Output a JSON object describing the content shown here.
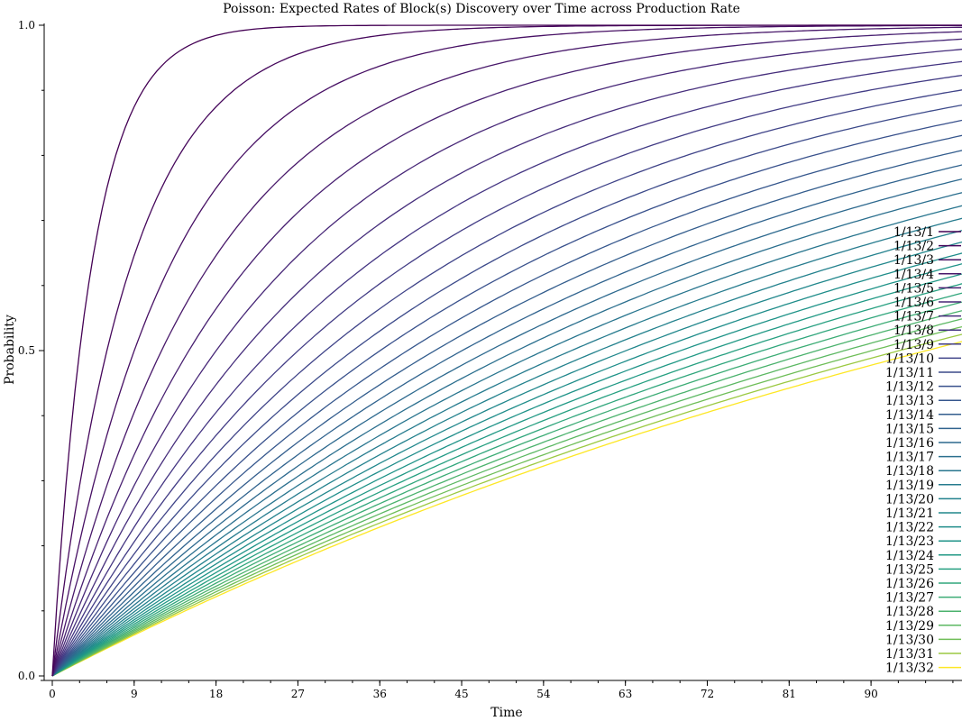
{
  "chart_data": {
    "type": "line",
    "title": "Poisson: Expected Rates of Block(s) Discovery over Time across Production Rate",
    "xlabel": "Time",
    "ylabel": "Probability",
    "xlim": [
      0,
      100
    ],
    "ylim": [
      0.0,
      1.0
    ],
    "xticks": [
      "0",
      "9",
      "18",
      "27",
      "36",
      "45",
      "54",
      "63",
      "72",
      "81",
      "90"
    ],
    "yticks": [
      "0.0",
      "0.5",
      "1.0"
    ],
    "legend_position": "right",
    "grid": false,
    "series": [
      {
        "name": "1/13/1",
        "color": "#440154"
      },
      {
        "name": "1/13/2",
        "color": "#46085c"
      },
      {
        "name": "1/13/3",
        "color": "#471064"
      },
      {
        "name": "1/13/4",
        "color": "#48186a"
      },
      {
        "name": "1/13/5",
        "color": "#482071"
      },
      {
        "name": "1/13/6",
        "color": "#472777"
      },
      {
        "name": "1/13/7",
        "color": "#462e7c"
      },
      {
        "name": "1/13/8",
        "color": "#443582"
      },
      {
        "name": "1/13/9",
        "color": "#423c85"
      },
      {
        "name": "1/13/10",
        "color": "#3f4388"
      },
      {
        "name": "1/13/11",
        "color": "#3c4a8a"
      },
      {
        "name": "1/13/12",
        "color": "#39518c"
      },
      {
        "name": "1/13/13",
        "color": "#36578d"
      },
      {
        "name": "1/13/14",
        "color": "#335d8d"
      },
      {
        "name": "1/13/15",
        "color": "#30638e"
      },
      {
        "name": "1/13/16",
        "color": "#2d698e"
      },
      {
        "name": "1/13/17",
        "color": "#2b6f8e"
      },
      {
        "name": "1/13/18",
        "color": "#28758e"
      },
      {
        "name": "1/13/19",
        "color": "#267b8e"
      },
      {
        "name": "1/13/20",
        "color": "#23818d"
      },
      {
        "name": "1/13/21",
        "color": "#21878c"
      },
      {
        "name": "1/13/22",
        "color": "#1f8d8a"
      },
      {
        "name": "1/13/23",
        "color": "#1f9388"
      },
      {
        "name": "1/13/24",
        "color": "#219985"
      },
      {
        "name": "1/13/25",
        "color": "#27a081"
      },
      {
        "name": "1/13/26",
        "color": "#30a67c"
      },
      {
        "name": "1/13/27",
        "color": "#3cac75"
      },
      {
        "name": "1/13/28",
        "color": "#4bb26d"
      },
      {
        "name": "1/13/29",
        "color": "#5cb863"
      },
      {
        "name": "1/13/30",
        "color": "#6fbe58"
      },
      {
        "name": "1/13/31",
        "color": "#9bc942"
      },
      {
        "name": "1/13/32",
        "color": "#fde725"
      }
    ]
  }
}
